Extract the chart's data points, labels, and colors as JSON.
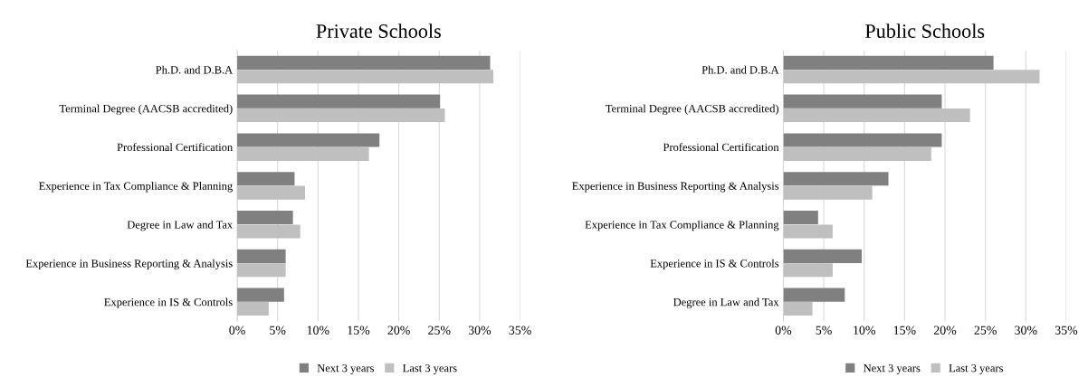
{
  "chart_data": [
    {
      "type": "bar",
      "orientation": "horizontal",
      "title": "Private Schools",
      "categories": [
        "Ph.D. and D.B.A",
        "Terminal Degree (AACSB accredited)",
        "Professional Certification",
        "Experience in Tax Compliance & Planning",
        "Degree in Law and Tax",
        "Experience in Business Reporting & Analysis",
        "Experience in IS & Controls"
      ],
      "series": [
        {
          "name": "Next 3 years",
          "color": "#808080",
          "values": [
            31.3,
            25.1,
            17.6,
            7.1,
            6.9,
            6.0,
            5.8
          ]
        },
        {
          "name": "Last 3 years",
          "color": "#bfbfbf",
          "values": [
            31.7,
            25.7,
            16.3,
            8.4,
            7.8,
            6.0,
            3.9
          ]
        }
      ],
      "xlim": [
        0,
        35
      ],
      "xticks": [
        {
          "value": 0,
          "label": "0%"
        },
        {
          "value": 5,
          "label": "5%"
        },
        {
          "value": 10,
          "label": "10%"
        },
        {
          "value": 15,
          "label": "15%"
        },
        {
          "value": 20,
          "label": "20%"
        },
        {
          "value": 25,
          "label": "25%"
        },
        {
          "value": 30,
          "label": "30%"
        },
        {
          "value": 35,
          "label": "35%"
        }
      ],
      "grid": "x",
      "legend": "bottom"
    },
    {
      "type": "bar",
      "orientation": "horizontal",
      "title": "Public Schools",
      "categories": [
        "Ph.D. and D.B.A",
        "Terminal Degree (AACSB accredited)",
        "Professional Certification",
        "Experience in Business Reporting & Analysis",
        "Experience in Tax Compliance & Planning",
        "Experience in IS & Controls",
        "Degree in Law and Tax"
      ],
      "series": [
        {
          "name": "Next 3 years",
          "color": "#808080",
          "values": [
            26.0,
            19.6,
            19.6,
            13.0,
            4.3,
            9.7,
            7.6
          ]
        },
        {
          "name": "Last 3 years",
          "color": "#bfbfbf",
          "values": [
            31.7,
            23.1,
            18.3,
            11.0,
            6.1,
            6.1,
            3.6
          ]
        }
      ],
      "xlim": [
        0,
        35
      ],
      "xticks": [
        {
          "value": 0,
          "label": "0%"
        },
        {
          "value": 5,
          "label": "5%"
        },
        {
          "value": 10,
          "label": "10%"
        },
        {
          "value": 15,
          "label": "15%"
        },
        {
          "value": 20,
          "label": "20%"
        },
        {
          "value": 25,
          "label": "25%"
        },
        {
          "value": 30,
          "label": "30%"
        },
        {
          "value": 35,
          "label": "35%"
        }
      ],
      "grid": "x",
      "legend": "bottom"
    }
  ]
}
